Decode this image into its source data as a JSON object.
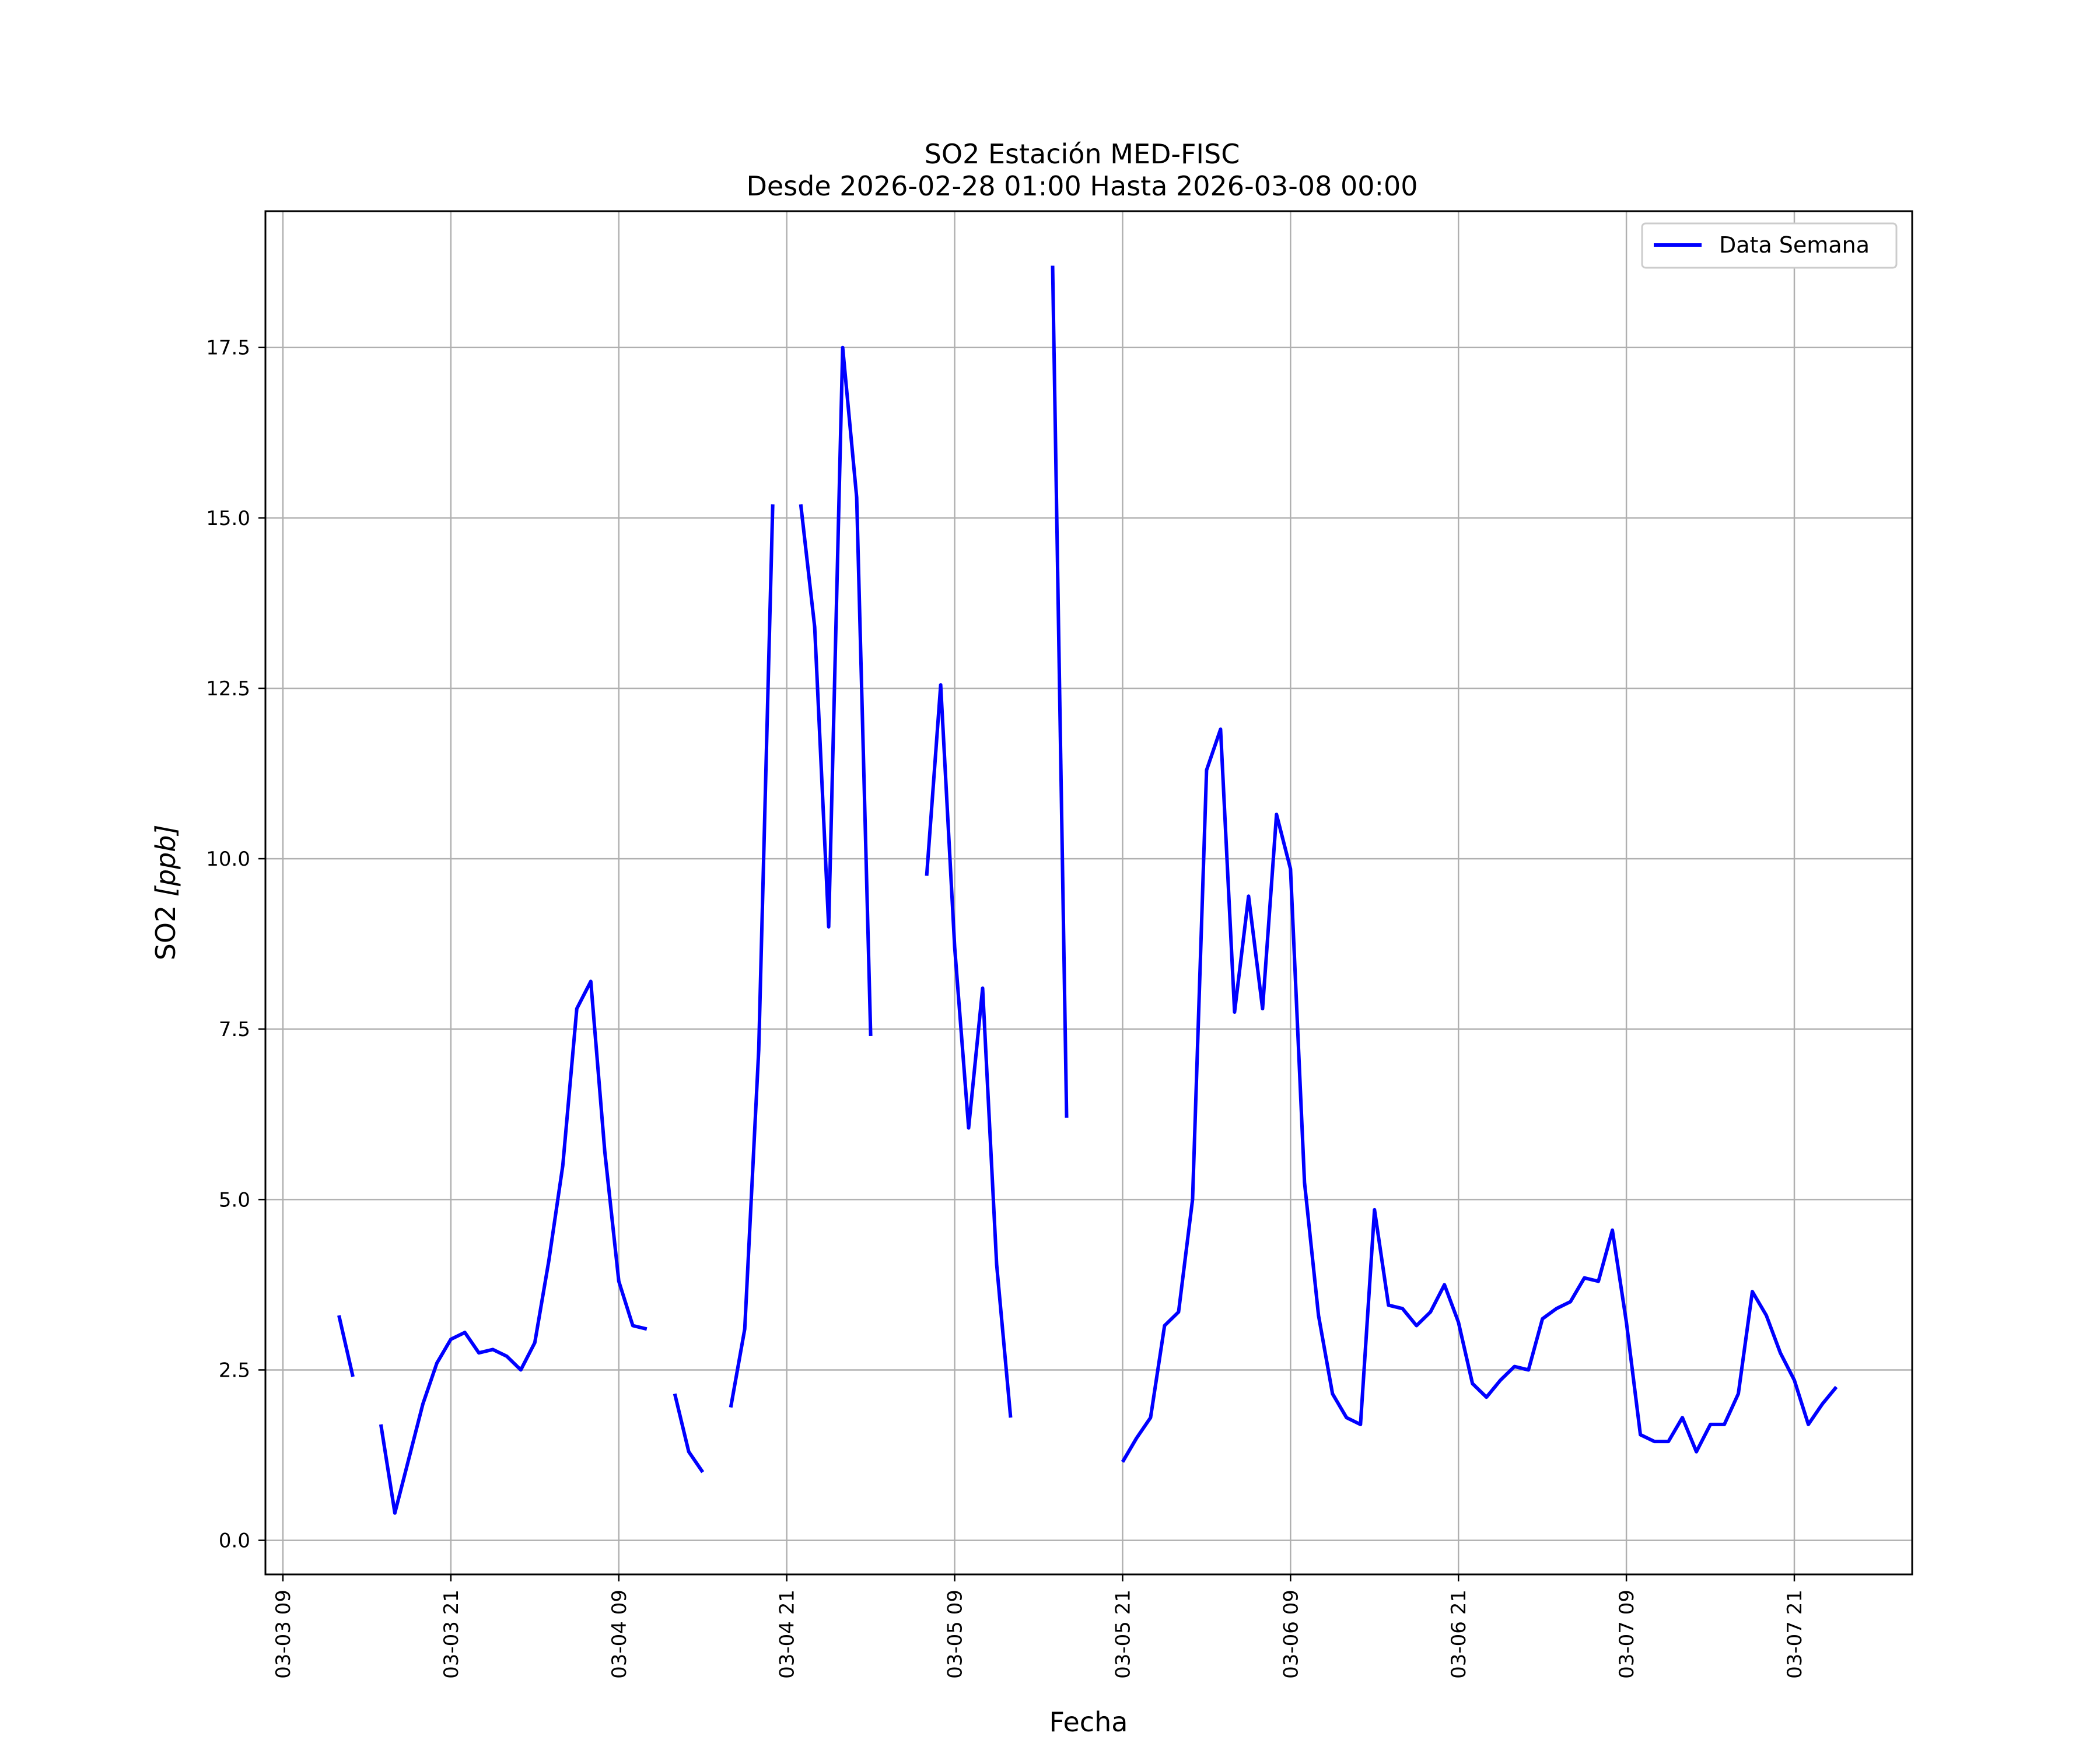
{
  "chart_data": {
    "type": "line",
    "title": "SO2 Estación MED-FISC",
    "subtitle": "Desde 2026-02-28 01:00 Hasta 2026-03-08 00:00",
    "xlabel": "Fecha",
    "ylabel_main": "SO2 ",
    "ylabel_unit": "[ppb]",
    "x_tick_labels": [
      "03-03 09",
      "03-03 21",
      "03-04 09",
      "03-04 21",
      "03-05 09",
      "03-05 21",
      "03-06 09",
      "03-06 21",
      "03-07 09",
      "03-07 21"
    ],
    "y_tick_labels": [
      "0.0",
      "2.5",
      "5.0",
      "7.5",
      "10.0",
      "12.5",
      "15.0",
      "17.5"
    ],
    "ylim": [
      -0.5,
      19.5
    ],
    "grid": true,
    "legend_position": "top-right",
    "series": [
      {
        "name": "Data Semana",
        "color": "#0000ff",
        "segments": [
          [
            [
              "2026-03-03 13:00",
              3.3
            ],
            [
              "2026-03-03 14:00",
              2.4
            ]
          ],
          [
            [
              "2026-03-03 16:00",
              1.7
            ],
            [
              "2026-03-03 17:00",
              0.4
            ],
            [
              "2026-03-03 18:00",
              1.2
            ],
            [
              "2026-03-03 19:00",
              2.0
            ],
            [
              "2026-03-03 20:00",
              2.6
            ],
            [
              "2026-03-03 21:00",
              2.95
            ],
            [
              "2026-03-03 22:00",
              3.05
            ],
            [
              "2026-03-03 23:00",
              2.75
            ],
            [
              "2026-03-04 00:00",
              2.8
            ],
            [
              "2026-03-04 01:00",
              2.7
            ],
            [
              "2026-03-04 02:00",
              2.5
            ],
            [
              "2026-03-04 03:00",
              2.9
            ],
            [
              "2026-03-04 04:00",
              4.1
            ],
            [
              "2026-03-04 05:00",
              5.5
            ],
            [
              "2026-03-04 06:00",
              7.8
            ],
            [
              "2026-03-04 07:00",
              8.2
            ],
            [
              "2026-03-04 08:00",
              5.7
            ],
            [
              "2026-03-04 09:00",
              3.8
            ],
            [
              "2026-03-04 10:00",
              3.15
            ],
            [
              "2026-03-04 11:00",
              3.1
            ]
          ],
          [
            [
              "2026-03-04 13:00",
              2.15
            ],
            [
              "2026-03-04 14:00",
              1.3
            ],
            [
              "2026-03-04 15:00",
              1.0
            ]
          ],
          [
            [
              "2026-03-04 17:00",
              1.95
            ],
            [
              "2026-03-04 18:00",
              3.1
            ],
            [
              "2026-03-04 19:00",
              7.2
            ],
            [
              "2026-03-04 20:00",
              15.2
            ]
          ],
          [
            [
              "2026-03-04 22:00",
              15.2
            ],
            [
              "2026-03-04 23:00",
              13.4
            ],
            [
              "2026-03-05 00:00",
              9.0
            ],
            [
              "2026-03-05 01:00",
              17.5
            ],
            [
              "2026-03-05 02:00",
              15.3
            ],
            [
              "2026-03-05 03:00",
              7.4
            ]
          ],
          [
            [
              "2026-03-05 07:00",
              9.75
            ],
            [
              "2026-03-05 08:00",
              12.55
            ],
            [
              "2026-03-05 09:00",
              8.7
            ],
            [
              "2026-03-05 10:00",
              6.05
            ],
            [
              "2026-03-05 11:00",
              8.1
            ],
            [
              "2026-03-05 12:00",
              4.05
            ],
            [
              "2026-03-05 13:00",
              1.8
            ]
          ],
          [
            [
              "2026-03-05 16:00",
              18.7
            ],
            [
              "2026-03-05 17:00",
              6.2
            ]
          ],
          [
            [
              "2026-03-05 21:00",
              1.15
            ],
            [
              "2026-03-05 22:00",
              1.5
            ],
            [
              "2026-03-05 23:00",
              1.8
            ],
            [
              "2026-03-06 00:00",
              3.15
            ],
            [
              "2026-03-06 01:00",
              3.35
            ],
            [
              "2026-03-06 02:00",
              5.0
            ],
            [
              "2026-03-06 03:00",
              11.3
            ],
            [
              "2026-03-06 04:00",
              11.9
            ],
            [
              "2026-03-06 05:00",
              7.75
            ],
            [
              "2026-03-06 06:00",
              9.45
            ],
            [
              "2026-03-06 07:00",
              7.8
            ],
            [
              "2026-03-06 08:00",
              10.65
            ],
            [
              "2026-03-06 09:00",
              9.85
            ],
            [
              "2026-03-06 10:00",
              5.25
            ],
            [
              "2026-03-06 11:00",
              3.3
            ],
            [
              "2026-03-06 12:00",
              2.15
            ],
            [
              "2026-03-06 13:00",
              1.8
            ],
            [
              "2026-03-06 14:00",
              1.7
            ],
            [
              "2026-03-06 15:00",
              4.85
            ],
            [
              "2026-03-06 16:00",
              3.45
            ],
            [
              "2026-03-06 17:00",
              3.4
            ],
            [
              "2026-03-06 18:00",
              3.15
            ],
            [
              "2026-03-06 19:00",
              3.35
            ],
            [
              "2026-03-06 20:00",
              3.75
            ],
            [
              "2026-03-06 21:00",
              3.2
            ],
            [
              "2026-03-06 22:00",
              2.3
            ],
            [
              "2026-03-06 23:00",
              2.1
            ],
            [
              "2026-03-07 00:00",
              2.35
            ],
            [
              "2026-03-07 01:00",
              2.55
            ],
            [
              "2026-03-07 02:00",
              2.5
            ],
            [
              "2026-03-07 03:00",
              3.25
            ],
            [
              "2026-03-07 04:00",
              3.4
            ],
            [
              "2026-03-07 05:00",
              3.5
            ],
            [
              "2026-03-07 06:00",
              3.85
            ],
            [
              "2026-03-07 07:00",
              3.8
            ],
            [
              "2026-03-07 08:00",
              4.55
            ],
            [
              "2026-03-07 09:00",
              3.2
            ],
            [
              "2026-03-07 10:00",
              1.55
            ],
            [
              "2026-03-07 11:00",
              1.45
            ],
            [
              "2026-03-07 12:00",
              1.45
            ],
            [
              "2026-03-07 13:00",
              1.8
            ],
            [
              "2026-03-07 14:00",
              1.3
            ],
            [
              "2026-03-07 15:00",
              1.7
            ],
            [
              "2026-03-07 16:00",
              1.7
            ],
            [
              "2026-03-07 17:00",
              2.15
            ],
            [
              "2026-03-07 18:00",
              3.65
            ],
            [
              "2026-03-07 19:00",
              3.3
            ],
            [
              "2026-03-07 20:00",
              2.75
            ],
            [
              "2026-03-07 21:00",
              2.35
            ],
            [
              "2026-03-07 22:00",
              1.7
            ],
            [
              "2026-03-07 23:00",
              2.0
            ],
            [
              "2026-03-08 00:00",
              2.25
            ]
          ]
        ]
      }
    ]
  }
}
